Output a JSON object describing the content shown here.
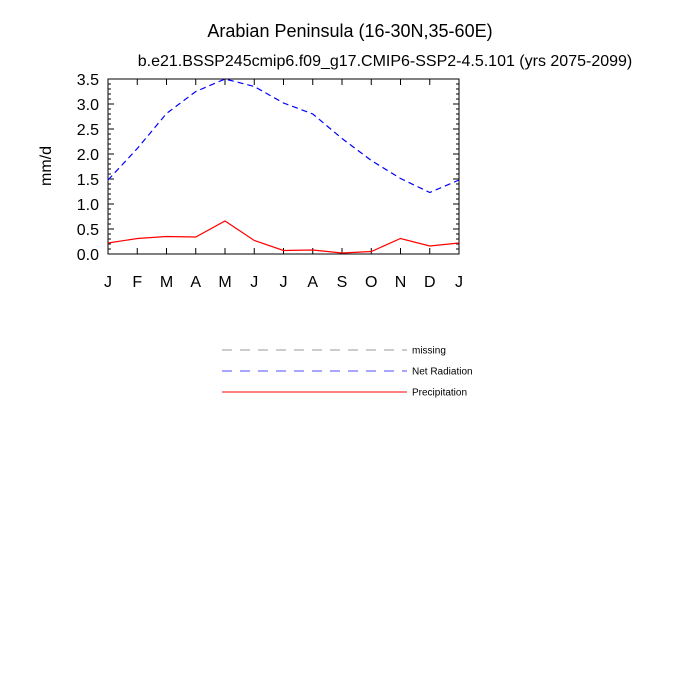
{
  "chart_data": {
    "type": "line",
    "title": "Arabian Peninsula (16-30N,35-60E)",
    "subtitle": "b.e21.BSSP245cmip6.f09_g17.CMIP6-SSP2-4.5.101 (yrs 2075-2099)",
    "xlabel": "",
    "ylabel": "mm/d",
    "categories": [
      "J",
      "F",
      "M",
      "A",
      "M",
      "J",
      "J",
      "A",
      "S",
      "O",
      "N",
      "D",
      "J"
    ],
    "ylim": [
      0,
      3.5
    ],
    "yticks": [
      "0.0",
      "0.5",
      "1.0",
      "1.5",
      "2.0",
      "2.5",
      "3.0",
      "3.5"
    ],
    "series": [
      {
        "name": "Net Radiation",
        "color": "#0000ff",
        "dash": "dashed",
        "values": [
          1.48,
          2.11,
          2.81,
          3.25,
          3.5,
          3.35,
          3.02,
          2.8,
          2.31,
          1.87,
          1.51,
          1.23,
          1.48
        ]
      },
      {
        "name": "Precipitation",
        "color": "#ff0000",
        "dash": "solid",
        "values": [
          0.22,
          0.31,
          0.35,
          0.34,
          0.66,
          0.27,
          0.07,
          0.08,
          0.02,
          0.05,
          0.31,
          0.16,
          0.22
        ]
      }
    ],
    "legend": [
      {
        "label": "missing",
        "color": "#9a9a9a",
        "dash": "dashed"
      },
      {
        "label": "Net Radiation",
        "color": "#0000ff",
        "dash": "dashed"
      },
      {
        "label": "Precipitation",
        "color": "#ff0000",
        "dash": "solid"
      }
    ]
  }
}
